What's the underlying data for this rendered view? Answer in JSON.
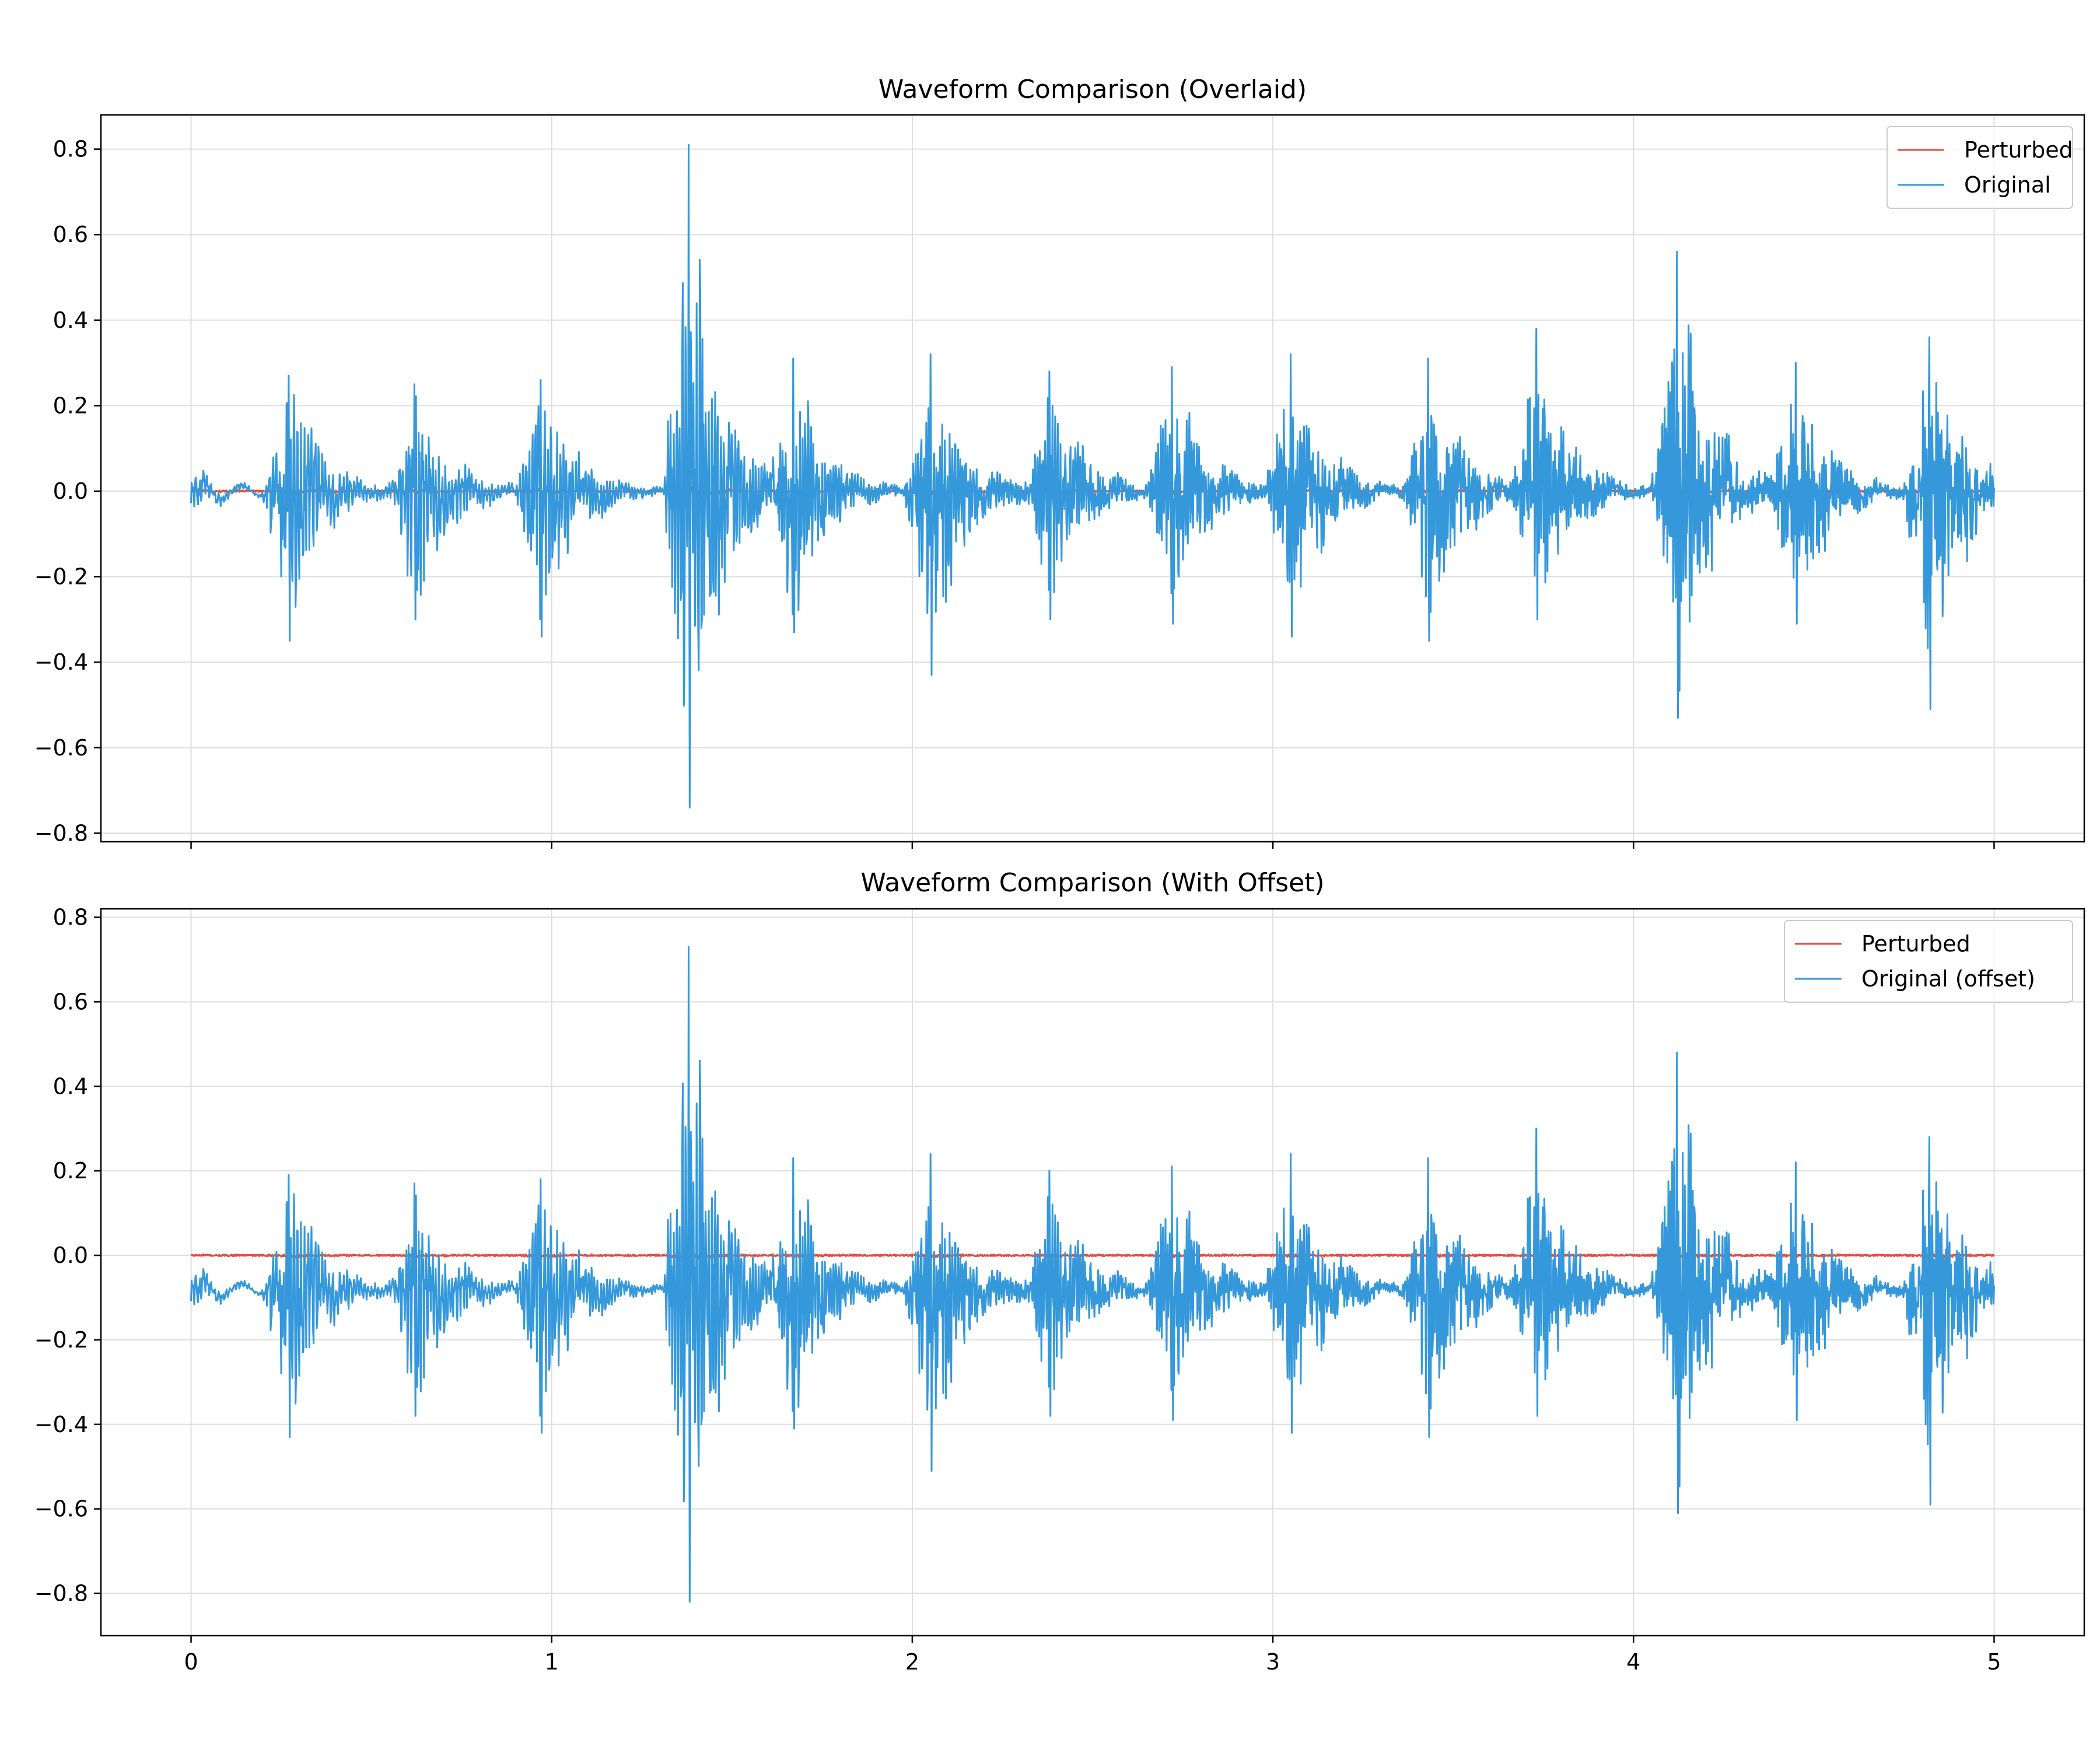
{
  "chart_data": [
    {
      "type": "line",
      "title": "Waveform Comparison (Overlaid)",
      "xlabel": "",
      "ylabel": "",
      "xlim": [
        -0.25,
        5.25
      ],
      "ylim": [
        -0.82,
        0.88
      ],
      "xticks": [
        0,
        1,
        2,
        3,
        4,
        5
      ],
      "xtick_labels_visible": false,
      "yticks": [
        -0.8,
        -0.6,
        -0.4,
        -0.2,
        0.0,
        0.2,
        0.4,
        0.6,
        0.8
      ],
      "ytick_labels": [
        "−0.8",
        "−0.6",
        "−0.4",
        "−0.2",
        "0.0",
        "0.2",
        "0.4",
        "0.6",
        "0.8"
      ],
      "grid": true,
      "legend_position": "top-right",
      "legend": [
        "Perturbed",
        "Original"
      ],
      "series": [
        {
          "name": "Perturbed",
          "color": "#e74c3c",
          "offset": 0.0,
          "amplitude_scale": 0.02
        },
        {
          "name": "Original",
          "color": "#3498db",
          "offset": 0.0,
          "amplitude_scale": 1.0
        }
      ],
      "signal_duration": 5.0,
      "bursts": [
        {
          "t": 0.0,
          "peak_pos": 0.04,
          "peak_neg": -0.05
        },
        {
          "t": 0.27,
          "peak_pos": 0.27,
          "peak_neg": -0.35
        },
        {
          "t": 0.62,
          "peak_pos": 0.25,
          "peak_neg": -0.3
        },
        {
          "t": 0.97,
          "peak_pos": 0.26,
          "peak_neg": -0.34
        },
        {
          "t": 1.38,
          "peak_pos": 0.81,
          "peak_neg": -0.74
        },
        {
          "t": 1.67,
          "peak_pos": 0.31,
          "peak_neg": -0.33
        },
        {
          "t": 2.05,
          "peak_pos": 0.32,
          "peak_neg": -0.43
        },
        {
          "t": 2.38,
          "peak_pos": 0.28,
          "peak_neg": -0.3
        },
        {
          "t": 2.72,
          "peak_pos": 0.29,
          "peak_neg": -0.31
        },
        {
          "t": 3.05,
          "peak_pos": 0.32,
          "peak_neg": -0.34
        },
        {
          "t": 3.43,
          "peak_pos": 0.31,
          "peak_neg": -0.35
        },
        {
          "t": 3.73,
          "peak_pos": 0.38,
          "peak_neg": -0.3
        },
        {
          "t": 4.12,
          "peak_pos": 0.56,
          "peak_neg": -0.53
        },
        {
          "t": 4.45,
          "peak_pos": 0.3,
          "peak_neg": -0.31
        },
        {
          "t": 4.82,
          "peak_pos": 0.36,
          "peak_neg": -0.51
        }
      ]
    },
    {
      "type": "line",
      "title": "Waveform Comparison (With Offset)",
      "xlabel": "",
      "ylabel": "",
      "xlim": [
        -0.25,
        5.25
      ],
      "ylim": [
        -0.9,
        0.82
      ],
      "xticks": [
        0,
        1,
        2,
        3,
        4,
        5
      ],
      "xtick_labels": [
        "0",
        "1",
        "2",
        "3",
        "4",
        "5"
      ],
      "yticks": [
        -0.8,
        -0.6,
        -0.4,
        -0.2,
        0.0,
        0.2,
        0.4,
        0.6,
        0.8
      ],
      "ytick_labels": [
        "−0.8",
        "−0.6",
        "−0.4",
        "−0.2",
        "0.0",
        "0.2",
        "0.4",
        "0.6",
        "0.8"
      ],
      "grid": true,
      "legend_position": "top-right",
      "legend": [
        "Perturbed",
        "Original (offset)"
      ],
      "series": [
        {
          "name": "Perturbed",
          "color": "#e74c3c",
          "offset": 0.0,
          "amplitude_scale": 0.015
        },
        {
          "name": "Original (offset)",
          "color": "#3498db",
          "offset": -0.08,
          "amplitude_scale": 1.0
        }
      ],
      "signal_duration": 5.0,
      "bursts": [
        {
          "t": 0.0,
          "peak_pos": 0.04,
          "peak_neg": -0.05
        },
        {
          "t": 0.27,
          "peak_pos": 0.27,
          "peak_neg": -0.35
        },
        {
          "t": 0.62,
          "peak_pos": 0.25,
          "peak_neg": -0.3
        },
        {
          "t": 0.97,
          "peak_pos": 0.26,
          "peak_neg": -0.34
        },
        {
          "t": 1.38,
          "peak_pos": 0.81,
          "peak_neg": -0.74
        },
        {
          "t": 1.67,
          "peak_pos": 0.31,
          "peak_neg": -0.33
        },
        {
          "t": 2.05,
          "peak_pos": 0.32,
          "peak_neg": -0.43
        },
        {
          "t": 2.38,
          "peak_pos": 0.28,
          "peak_neg": -0.3
        },
        {
          "t": 2.72,
          "peak_pos": 0.29,
          "peak_neg": -0.31
        },
        {
          "t": 3.05,
          "peak_pos": 0.32,
          "peak_neg": -0.34
        },
        {
          "t": 3.43,
          "peak_pos": 0.31,
          "peak_neg": -0.35
        },
        {
          "t": 3.73,
          "peak_pos": 0.38,
          "peak_neg": -0.3
        },
        {
          "t": 4.12,
          "peak_pos": 0.56,
          "peak_neg": -0.53
        },
        {
          "t": 4.45,
          "peak_pos": 0.3,
          "peak_neg": -0.31
        },
        {
          "t": 4.82,
          "peak_pos": 0.36,
          "peak_neg": -0.51
        }
      ]
    }
  ]
}
